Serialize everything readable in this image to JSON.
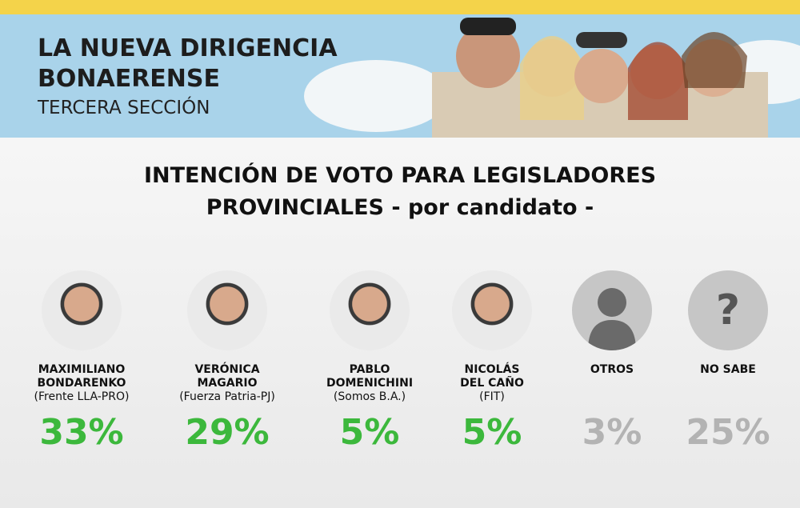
{
  "header": {
    "title_lines": [
      "LA NUEVA DIRIGENCIA",
      "BONAERENSE"
    ],
    "subtitle": "TERCERA SECCIÓN"
  },
  "heading_lines": [
    "INTENCIÓN DE VOTO PARA LEGISLADORES",
    "PROVINCIALES - por candidato -"
  ],
  "candidates": [
    {
      "name_lines": [
        "MAXIMILIANO",
        "BONDARENKO"
      ],
      "party": "(Frente LLA-PRO)",
      "percent": "33%",
      "color": "#3cb83c",
      "avatar": "photo"
    },
    {
      "name_lines": [
        "VERÓNICA",
        "MAGARIO"
      ],
      "party": "(Fuerza Patria-PJ)",
      "percent": "29%",
      "color": "#3cb83c",
      "avatar": "photo"
    },
    {
      "name_lines": [
        "PABLO",
        "DOMENICHINI"
      ],
      "party": "(Somos B.A.)",
      "percent": "5%",
      "color": "#3cb83c",
      "avatar": "photo"
    },
    {
      "name_lines": [
        "NICOLÁS",
        "DEL CAÑO"
      ],
      "party": "(FIT)",
      "percent": "5%",
      "color": "#3cb83c",
      "avatar": "photo"
    },
    {
      "name_lines": [
        "OTROS"
      ],
      "percent": "3%",
      "color": "#b3b3b3",
      "avatar": "silhouette"
    },
    {
      "name_lines": [
        "NO SABE"
      ],
      "percent": "25%",
      "color": "#b3b3b3",
      "avatar": "question",
      "icon": "?"
    }
  ]
}
